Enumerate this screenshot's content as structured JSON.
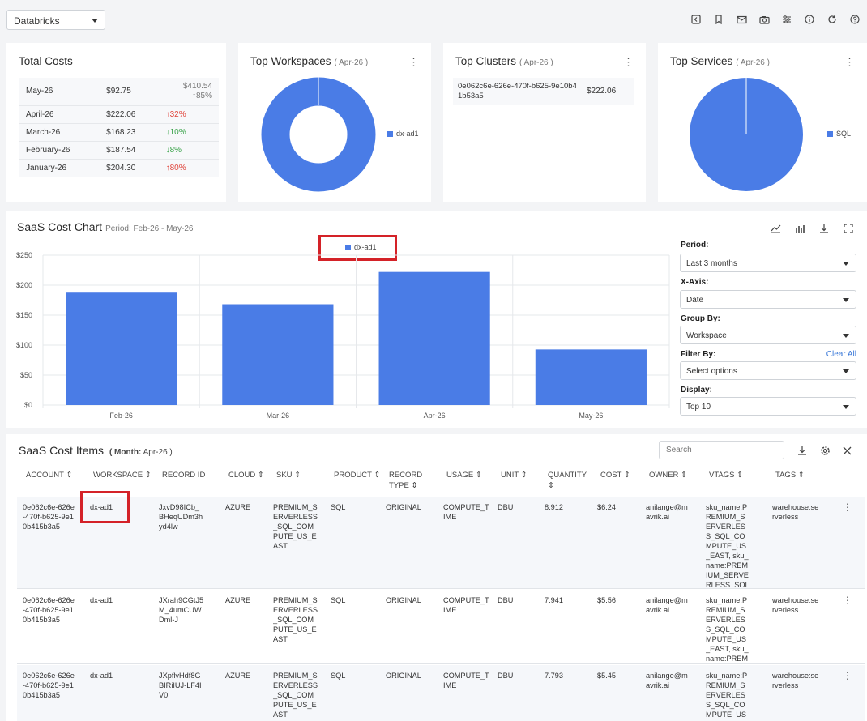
{
  "topbar": {
    "dropdown_value": "Databricks"
  },
  "icons": [
    "back-icon",
    "bookmark-icon",
    "mail-icon",
    "camera-icon",
    "sliders-icon",
    "info-icon",
    "refresh-icon",
    "help-icon"
  ],
  "total_costs": {
    "title": "Total Costs",
    "rows": [
      {
        "month": "May-26",
        "value": "$92.75",
        "forecast": "$410.54",
        "change": "↑85%",
        "dir": "muted"
      },
      {
        "month": "April-26",
        "value": "$222.06",
        "change": "↑32%",
        "dir": "up"
      },
      {
        "month": "March-26",
        "value": "$168.23",
        "change": "↓10%",
        "dir": "down"
      },
      {
        "month": "February-26",
        "value": "$187.54",
        "change": "↓8%",
        "dir": "down"
      },
      {
        "month": "January-26",
        "value": "$204.30",
        "change": "↑80%",
        "dir": "up"
      }
    ]
  },
  "top_workspaces": {
    "title": "Top Workspaces",
    "period": "( Apr-26 )",
    "legend": "dx-ad1"
  },
  "top_clusters": {
    "title": "Top Clusters",
    "period": "( Apr-26 )",
    "cluster_id": "0e062c6e-626e-470f-b625-9e10b41b53a5",
    "cost": "$222.06"
  },
  "top_services": {
    "title": "Top Services",
    "period": "( Apr-26 )",
    "legend": "SQL"
  },
  "saas_chart": {
    "title": "SaaS Cost Chart",
    "period_label": "Period: Feb-26 - May-26",
    "legend": "dx-ad1",
    "toolbar_icons": [
      "line-chart-icon",
      "bar-chart-icon",
      "download-icon",
      "fullscreen-icon"
    ]
  },
  "chart_data": {
    "type": "bar",
    "categories": [
      "Feb-26",
      "Mar-26",
      "Apr-26",
      "May-26"
    ],
    "series": [
      {
        "name": "dx-ad1",
        "values": [
          187.54,
          168.23,
          222.06,
          92.75
        ]
      }
    ],
    "yticks": [
      "$250",
      "$200",
      "$150",
      "$100",
      "$50",
      "$0"
    ],
    "ylim": [
      0,
      250
    ],
    "color": "#4a7ce6",
    "grid": true,
    "legend_position": "top-center"
  },
  "filters": {
    "period_label": "Period:",
    "period_value": "Last 3 months",
    "xaxis_label": "X-Axis:",
    "xaxis_value": "Date",
    "groupby_label": "Group By:",
    "groupby_value": "Workspace",
    "filterby_label": "Filter By:",
    "clear_all": "Clear All",
    "filterby_placeholder": "Select options",
    "display_label": "Display:",
    "display_value": "Top 10"
  },
  "cost_items": {
    "title": "SaaS Cost Items",
    "month_label": "( Month:",
    "month_value": "Apr-26 )",
    "search_placeholder": "Search",
    "headers": [
      "ACCOUNT ⇕",
      "WORKSPACE ⇕",
      "RECORD ID",
      "CLOUD ⇕",
      "SKU ⇕",
      "PRODUCT ⇕",
      "RECORD TYPE ⇕",
      "USAGE ⇕",
      "UNIT ⇕",
      "QUANTITY ⇕",
      "COST ⇕",
      "OWNER ⇕",
      "VTAGS ⇕",
      "TAGS ⇕"
    ],
    "rows": [
      {
        "account": "0e062c6e-626e-470f-b625-9e10b415b3a5",
        "workspace": "dx-ad1",
        "record_id": "JxvD98ICb_BHeqUDm3hyd4lw",
        "cloud": "AZURE",
        "sku": "PREMIUM_SERVERLESS_SQL_COMPUTE_US_EAST",
        "product": "SQL",
        "record_type": "ORIGINAL",
        "usage": "COMPUTE_TIME",
        "unit": "DBU",
        "quantity": "8.912",
        "cost": "$6.24",
        "owner": "anilange@mavrik.ai",
        "vtags": "sku_name:PREMIUM_SERVERLESS_SQL_COMPUTE_US_EAST, sku_name:PREMIUM_SERVERLESS_SQL_COMPUTE_",
        "tags": "warehouse:serverless"
      },
      {
        "account": "0e062c6e-626e-470f-b625-9e10b415b3a5",
        "workspace": "dx-ad1",
        "record_id": "JXrah9CGtJ5M_4umCUWDml-J",
        "cloud": "AZURE",
        "sku": "PREMIUM_SERVERLESS_SQL_COMPUTE_US_EAST",
        "product": "SQL",
        "record_type": "ORIGINAL",
        "usage": "COMPUTE_TIME",
        "unit": "DBU",
        "quantity": "7.941",
        "cost": "$5.56",
        "owner": "anilange@mavrik.ai",
        "vtags": "sku_name:PREMIUM_SERVERLESS_SQL_COMPUTE_US_EAST, sku_name:PREMIUM_SERVERLESS_SO",
        "tags": "warehouse:serverless"
      },
      {
        "account": "0e062c6e-626e-470f-b625-9e10b415b3a5",
        "workspace": "dx-ad1",
        "record_id": "JXpflvHdf8GBIRiIUJ-LF4IV0",
        "cloud": "AZURE",
        "sku": "PREMIUM_SERVERLESS_SQL_COMPUTE_US_EAST",
        "product": "SQL",
        "record_type": "ORIGINAL",
        "usage": "COMPUTE_TIME",
        "unit": "DBU",
        "quantity": "7.793",
        "cost": "$5.45",
        "owner": "anilange@mavrik.ai",
        "vtags": "sku_name:PREMIUM_SERVERLESS_SQL_COMPUTE_US_EAST",
        "tags": "warehouse:serverless"
      }
    ]
  }
}
